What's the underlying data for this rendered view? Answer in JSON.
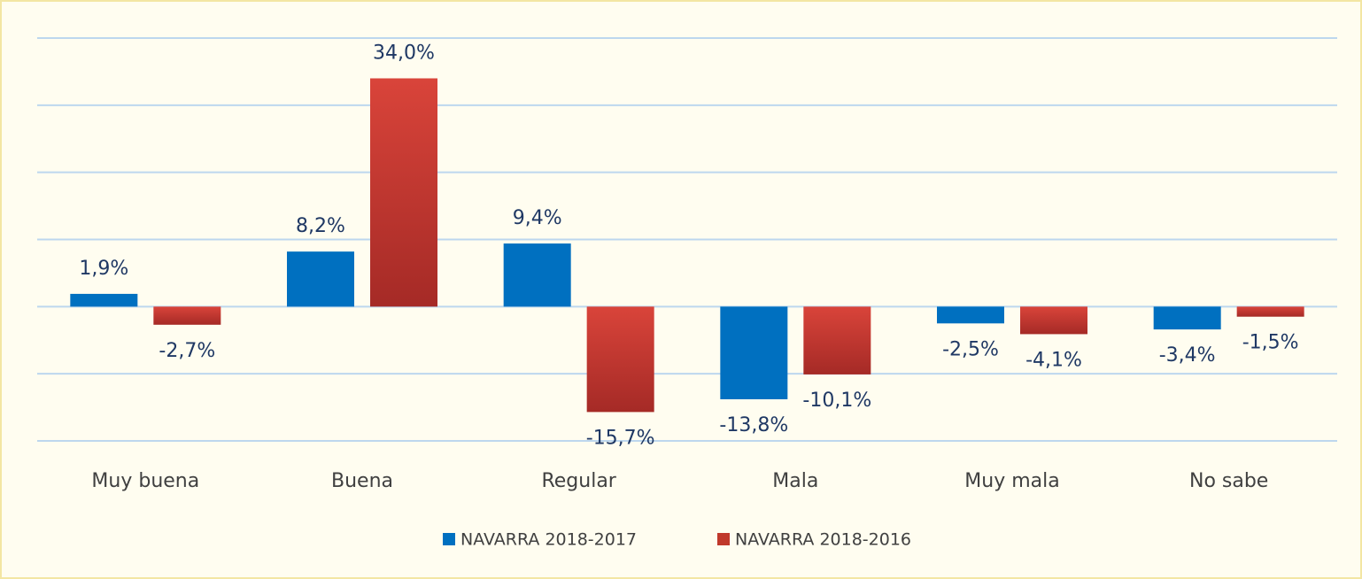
{
  "chart_data": {
    "type": "bar",
    "categories": [
      "Muy buena",
      "Buena",
      "Regular",
      "Mala",
      "Muy mala",
      "No sabe"
    ],
    "series": [
      {
        "name": "NAVARRA 2018-2017",
        "color": "#0070c0",
        "values": [
          1.9,
          8.2,
          9.4,
          -13.8,
          -2.5,
          -3.4
        ],
        "value_labels": [
          "1,9%",
          "8,2%",
          "9,4%",
          "-13,8%",
          "-2,5%",
          "-3,4%"
        ]
      },
      {
        "name": "NAVARRA 2018-2016",
        "color": "#c0392b",
        "values": [
          -2.7,
          34.0,
          -15.7,
          -10.1,
          -4.1,
          -1.5
        ],
        "value_labels": [
          "-2,7%",
          "34,0%",
          "-15,7%",
          "-10,1%",
          "-4,1%",
          "-1,5%"
        ]
      }
    ],
    "ylim": [
      -20,
      40
    ],
    "yticks": [
      -20,
      -10,
      0,
      10,
      20,
      30,
      40
    ],
    "grid": true,
    "legend": "bottom"
  }
}
